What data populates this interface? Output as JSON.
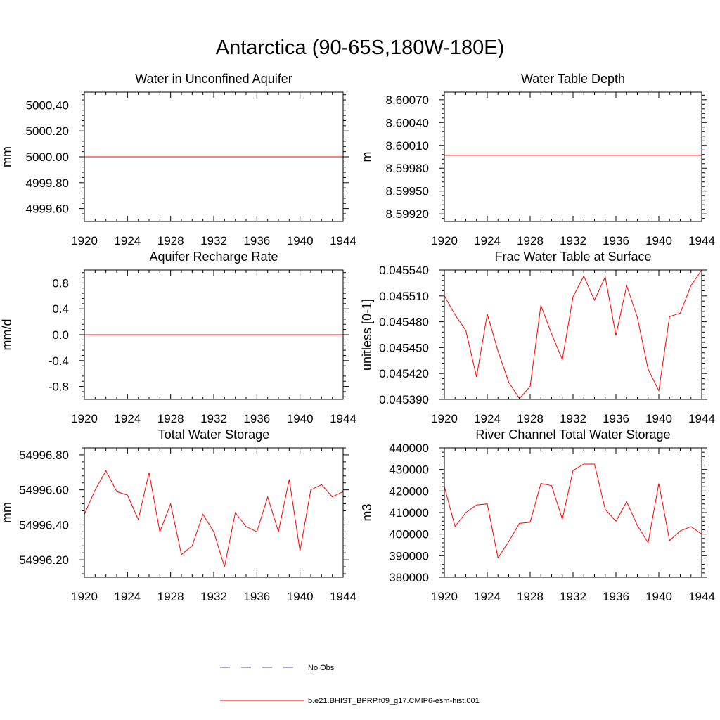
{
  "figure": {
    "title": "Antarctica (90-65S,180W-180E)"
  },
  "legend": {
    "obs_label": "No Obs",
    "obs_color": "#4a4aa8",
    "model_label": "b.e21.BHIST_BPRP.f09_g17.CMIP6-esm-hist.001",
    "model_color": "#ff0000"
  },
  "chart_data": [
    {
      "type": "line",
      "title": "Water in Unconfined Aquifer",
      "ylabel": "mm",
      "xlim": [
        1920,
        1944
      ],
      "ylim": [
        4999.5,
        5000.5
      ],
      "x_ticks": [
        1920,
        1924,
        1928,
        1932,
        1936,
        1940,
        1944
      ],
      "y_ticks": [
        4999.6,
        4999.8,
        5000.0,
        5000.2,
        5000.4
      ],
      "y_tick_labels": [
        "4999.60",
        "4999.80",
        "5000.00",
        "5000.20",
        "5000.40"
      ],
      "series": [
        {
          "x": [
            1920,
            1944
          ],
          "values": [
            5000.0,
            5000.0
          ]
        }
      ]
    },
    {
      "type": "line",
      "title": "Water Table Depth",
      "ylabel": "m",
      "xlim": [
        1920,
        1944
      ],
      "ylim": [
        8.5991,
        8.6008
      ],
      "x_ticks": [
        1920,
        1924,
        1928,
        1932,
        1936,
        1940,
        1944
      ],
      "y_ticks": [
        8.5992,
        8.5995,
        8.5998,
        8.6001,
        8.6004,
        8.6007
      ],
      "y_tick_labels": [
        "8.59920",
        "8.59950",
        "8.59980",
        "8.60010",
        "8.60040",
        "8.60070"
      ],
      "series": [
        {
          "x": [
            1920,
            1944
          ],
          "values": [
            8.59997,
            8.59997
          ]
        }
      ]
    },
    {
      "type": "line",
      "title": "Aquifer Recharge Rate",
      "ylabel": "mm/d",
      "xlim": [
        1920,
        1944
      ],
      "ylim": [
        -1.0,
        1.0
      ],
      "x_ticks": [
        1920,
        1924,
        1928,
        1932,
        1936,
        1940,
        1944
      ],
      "y_ticks": [
        -0.8,
        -0.4,
        0.0,
        0.4,
        0.8
      ],
      "y_tick_labels": [
        "-0.8",
        "-0.4",
        "0.0",
        "0.4",
        "0.8"
      ],
      "series": [
        {
          "x": [
            1920,
            1944
          ],
          "values": [
            0.0,
            0.0
          ]
        }
      ]
    },
    {
      "type": "line",
      "title": "Frac Water Table at Surface",
      "ylabel": "unitless [0-1]",
      "xlim": [
        1920,
        1944
      ],
      "ylim": [
        0.04539,
        0.04554
      ],
      "x_ticks": [
        1920,
        1924,
        1928,
        1932,
        1936,
        1940,
        1944
      ],
      "y_ticks": [
        0.04539,
        0.04542,
        0.04545,
        0.04548,
        0.04551,
        0.04554
      ],
      "y_tick_labels": [
        "0.045390",
        "0.045420",
        "0.045450",
        "0.045480",
        "0.045510",
        "0.045540"
      ],
      "series": [
        {
          "x": [
            1920,
            1921,
            1922,
            1923,
            1924,
            1925,
            1926,
            1927,
            1928,
            1929,
            1930,
            1931,
            1932,
            1933,
            1934,
            1935,
            1936,
            1937,
            1938,
            1939,
            1940,
            1941,
            1942,
            1943,
            1944
          ],
          "values": [
            0.04551,
            0.045488,
            0.04547,
            0.045416,
            0.045489,
            0.045446,
            0.04541,
            0.045391,
            0.045405,
            0.045499,
            0.045466,
            0.045436,
            0.045509,
            0.045533,
            0.045505,
            0.045532,
            0.045464,
            0.045522,
            0.045485,
            0.045425,
            0.0454,
            0.045486,
            0.04549,
            0.045522,
            0.04554
          ]
        }
      ]
    },
    {
      "type": "line",
      "title": "Total Water Storage",
      "ylabel": "mm",
      "xlim": [
        1920,
        1944
      ],
      "ylim": [
        54996.1,
        54996.84
      ],
      "x_ticks": [
        1920,
        1924,
        1928,
        1932,
        1936,
        1940,
        1944
      ],
      "y_ticks": [
        54996.2,
        54996.4,
        54996.6,
        54996.8
      ],
      "y_tick_labels": [
        "54996.20",
        "54996.40",
        "54996.60",
        "54996.80"
      ],
      "series": [
        {
          "x": [
            1920,
            1921,
            1922,
            1923,
            1924,
            1925,
            1926,
            1927,
            1928,
            1929,
            1930,
            1931,
            1932,
            1933,
            1934,
            1935,
            1936,
            1937,
            1938,
            1939,
            1940,
            1941,
            1942,
            1943,
            1944
          ],
          "values": [
            54996.46,
            54996.6,
            54996.71,
            54996.59,
            54996.57,
            54996.43,
            54996.7,
            54996.36,
            54996.52,
            54996.23,
            54996.28,
            54996.46,
            54996.36,
            54996.16,
            54996.47,
            54996.39,
            54996.36,
            54996.56,
            54996.36,
            54996.66,
            54996.25,
            54996.6,
            54996.63,
            54996.56,
            54996.59
          ]
        }
      ]
    },
    {
      "type": "line",
      "title": "River Channel Total Water Storage",
      "ylabel": "m3",
      "xlim": [
        1920,
        1944
      ],
      "ylim": [
        380000,
        440000
      ],
      "x_ticks": [
        1920,
        1924,
        1928,
        1932,
        1936,
        1940,
        1944
      ],
      "y_ticks": [
        380000,
        390000,
        400000,
        410000,
        420000,
        430000,
        440000
      ],
      "y_tick_labels": [
        "380000",
        "390000",
        "400000",
        "410000",
        "420000",
        "430000",
        "440000"
      ],
      "series": [
        {
          "x": [
            1920,
            1921,
            1922,
            1923,
            1924,
            1925,
            1926,
            1927,
            1928,
            1929,
            1930,
            1931,
            1932,
            1933,
            1934,
            1935,
            1936,
            1937,
            1938,
            1939,
            1940,
            1941,
            1942,
            1943,
            1944
          ],
          "values": [
            422000,
            403500,
            410000,
            413500,
            414000,
            389000,
            396500,
            405000,
            405500,
            423500,
            422500,
            407000,
            429500,
            432500,
            432500,
            411500,
            406000,
            415000,
            404000,
            396000,
            423500,
            397000,
            401500,
            403500,
            400000
          ]
        }
      ]
    }
  ]
}
